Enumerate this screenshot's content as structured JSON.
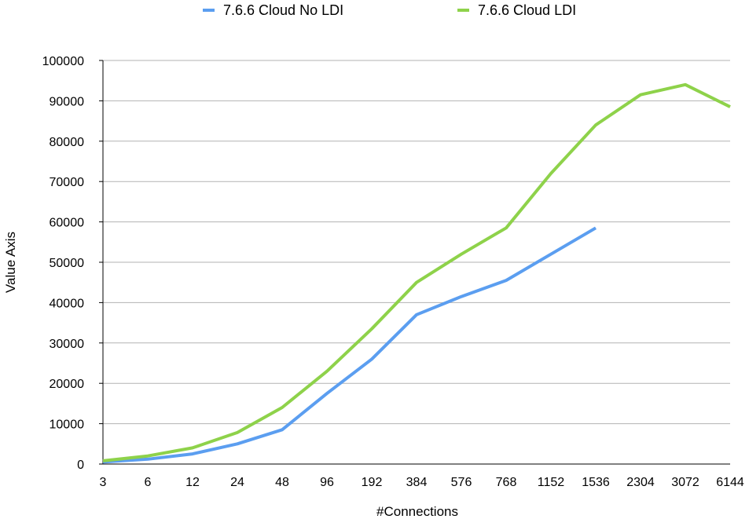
{
  "chart_data": {
    "type": "line",
    "title": "",
    "xlabel": "#Connections",
    "ylabel": "Value Axis",
    "categories": [
      "3",
      "6",
      "12",
      "24",
      "48",
      "96",
      "192",
      "384",
      "576",
      "768",
      "1152",
      "1536",
      "2304",
      "3072",
      "6144"
    ],
    "ylim": [
      0,
      100000
    ],
    "yticks": [
      "0",
      "10000",
      "20000",
      "30000",
      "40000",
      "50000",
      "60000",
      "70000",
      "80000",
      "90000",
      "100000"
    ],
    "grid": true,
    "legend_position": "top",
    "series": [
      {
        "name": "7.6.6 Cloud No LDI",
        "color": "#5b9ef0",
        "values": [
          500,
          1200,
          2500,
          5000,
          8500,
          17500,
          26000,
          37000,
          41500,
          45500,
          52000,
          58500,
          null,
          null,
          null
        ]
      },
      {
        "name": "7.6.6 Cloud LDI",
        "color": "#8ed24a",
        "values": [
          800,
          2000,
          4000,
          7800,
          14000,
          23000,
          33500,
          45000,
          52000,
          58500,
          72000,
          84000,
          91500,
          94000,
          88500
        ]
      }
    ]
  }
}
